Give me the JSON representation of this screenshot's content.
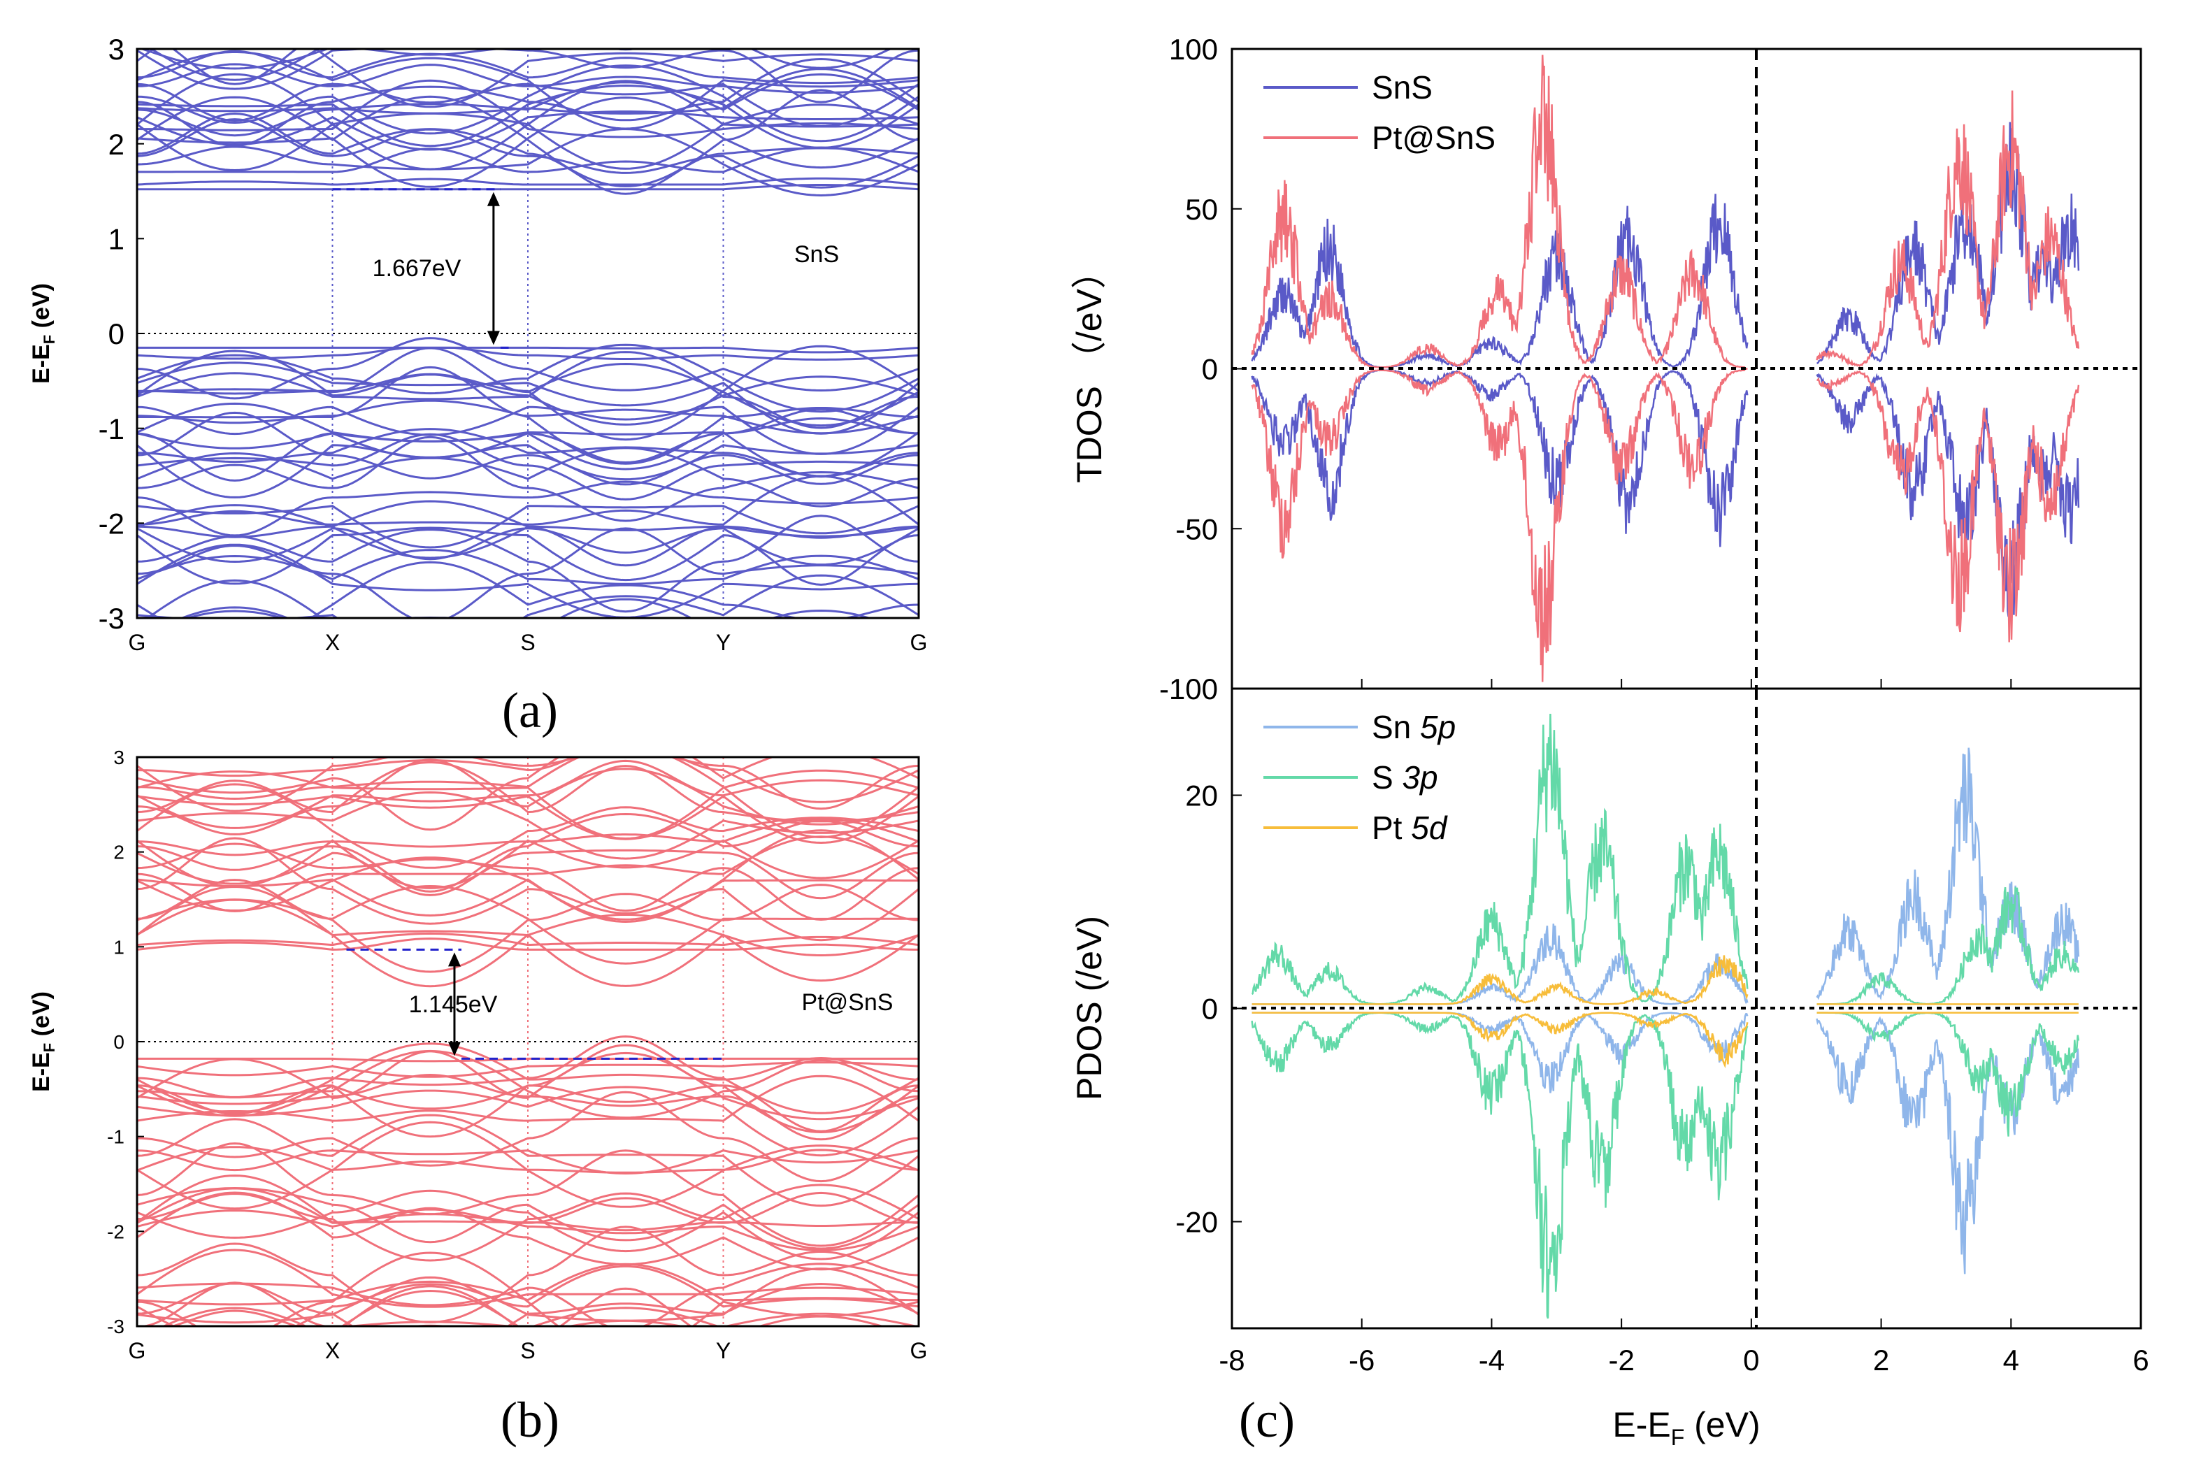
{
  "panel_labels": {
    "a": "(a)",
    "b": "(b)",
    "c": "(c)"
  },
  "colors": {
    "sns": "#5a5ac8",
    "pt_sns": "#f0707a",
    "sn5p": "#8fb6ea",
    "s3p": "#63d9a8",
    "pt5d": "#f7bd3a"
  },
  "chart_data": [
    {
      "id": "a",
      "type": "line",
      "subtype": "band-structure",
      "ylabel": "E-E_F (eV)",
      "ylim": [
        -3,
        3
      ],
      "yticks": [
        "-3",
        "-2",
        "-1",
        "0",
        "1",
        "2",
        "3"
      ],
      "kpoints": [
        "G",
        "X",
        "S",
        "Y",
        "G"
      ],
      "material_label": "SnS",
      "gap_label": "1.667eV",
      "vbm": -0.15,
      "cbm": 1.52,
      "color": "#5a5ac8"
    },
    {
      "id": "b",
      "type": "line",
      "subtype": "band-structure",
      "ylabel": "E-E_F (eV)",
      "ylim": [
        -3,
        3
      ],
      "yticks": [
        "-3",
        "-2",
        "-1",
        "0",
        "1",
        "2",
        "3"
      ],
      "kpoints": [
        "G",
        "X",
        "S",
        "Y",
        "G"
      ],
      "material_label": "Pt@SnS",
      "gap_label": "1.145eV",
      "vbm": -0.18,
      "cbm": 0.97,
      "color": "#f0707a"
    },
    {
      "id": "c-top",
      "type": "line",
      "subtype": "density-of-states",
      "ylabel": "TDOS （/eV）",
      "xlim": [
        -8,
        6
      ],
      "ylim": [
        -100,
        100
      ],
      "yticks": [
        "-100",
        "-50",
        "0",
        "50",
        "100"
      ],
      "legend_position": "top-left",
      "series": [
        {
          "name": "SnS",
          "color": "#5a5ac8",
          "peaks": [
            [
              -7.2,
              30
            ],
            [
              -6.5,
              48
            ],
            [
              -5.0,
              5
            ],
            [
              -4.0,
              10
            ],
            [
              -3.0,
              45
            ],
            [
              -1.9,
              52
            ],
            [
              -0.5,
              58
            ],
            [
              1.5,
              20
            ],
            [
              2.5,
              48
            ],
            [
              3.3,
              60
            ],
            [
              4.0,
              80
            ],
            [
              4.5,
              42
            ],
            [
              4.9,
              55
            ]
          ]
        },
        {
          "name": "Pt@SnS",
          "color": "#f0707a",
          "peaks": [
            [
              -7.2,
              60
            ],
            [
              -6.5,
              28
            ],
            [
              -5.0,
              8
            ],
            [
              -3.9,
              30
            ],
            [
              -3.2,
              98
            ],
            [
              -2.0,
              38
            ],
            [
              -0.9,
              38
            ],
            [
              1.2,
              6
            ],
            [
              2.3,
              42
            ],
            [
              3.2,
              85
            ],
            [
              4.0,
              88
            ],
            [
              4.6,
              52
            ]
          ]
        }
      ]
    },
    {
      "id": "c-bottom",
      "type": "line",
      "subtype": "density-of-states",
      "xlabel": "E-E_F (eV)",
      "ylabel": "PDOS (/eV)",
      "xlim": [
        -8,
        6
      ],
      "ylim": [
        -30,
        30
      ],
      "xticks": [
        "-8",
        "-6",
        "-4",
        "-2",
        "0",
        "2",
        "4",
        "6"
      ],
      "yticks": [
        "-20",
        "0",
        "20"
      ],
      "legend_position": "top-left",
      "series": [
        {
          "name_prefix": "Sn ",
          "name_orbital": "5p",
          "color": "#8fb6ea",
          "peaks": [
            [
              -4.0,
              2
            ],
            [
              -3.1,
              8
            ],
            [
              -2.0,
              5
            ],
            [
              -0.5,
              5
            ],
            [
              1.5,
              9
            ],
            [
              2.5,
              13
            ],
            [
              3.3,
              25
            ],
            [
              4.0,
              12
            ],
            [
              4.8,
              10
            ]
          ]
        },
        {
          "name_prefix": "S ",
          "name_orbital": "3p",
          "color": "#63d9a8",
          "peaks": [
            [
              -7.3,
              6
            ],
            [
              -6.5,
              4
            ],
            [
              -5.0,
              2
            ],
            [
              -4.0,
              10
            ],
            [
              -3.1,
              30
            ],
            [
              -2.3,
              19
            ],
            [
              -1.0,
              17
            ],
            [
              -0.5,
              18
            ],
            [
              2.0,
              3
            ],
            [
              3.5,
              8
            ],
            [
              4.0,
              12
            ],
            [
              4.8,
              6
            ]
          ]
        },
        {
          "name_prefix": "Pt ",
          "name_orbital": "5d",
          "color": "#f7bd3a",
          "peaks": [
            [
              -4.0,
              3
            ],
            [
              -3.0,
              2
            ],
            [
              -1.5,
              1.5
            ],
            [
              -0.4,
              5
            ]
          ]
        }
      ]
    }
  ]
}
